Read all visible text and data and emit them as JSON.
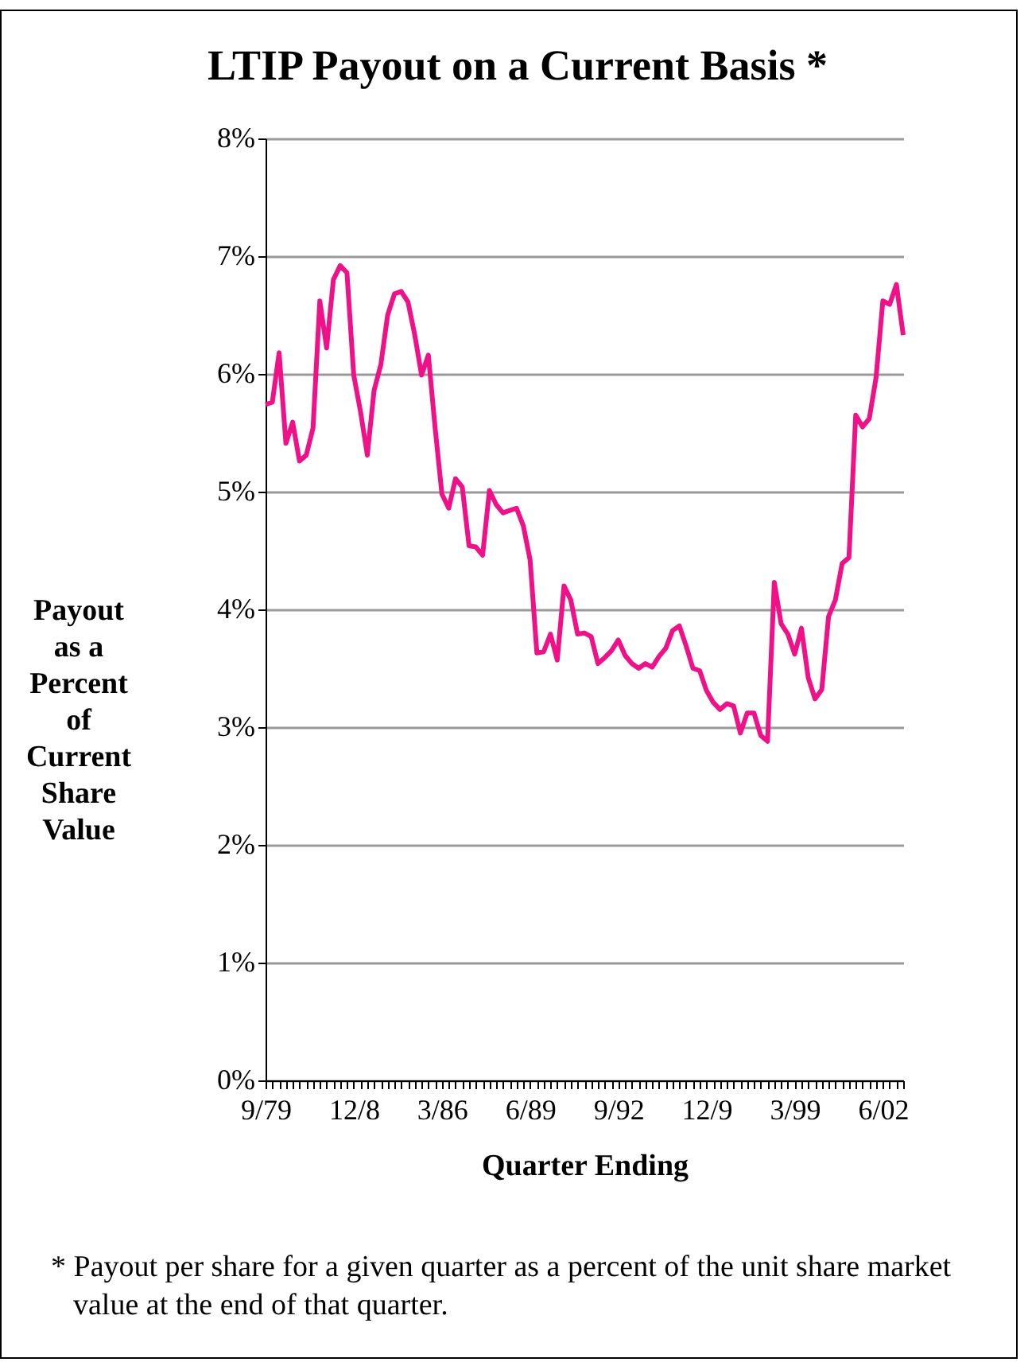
{
  "chart_data": {
    "type": "line",
    "title": "LTIP Payout on a Current Basis *",
    "xlabel": "Quarter Ending",
    "ylabel": "Payout\nas a\nPercent\nof\nCurrent\nShare\nValue",
    "categories": [
      "9/79",
      null,
      null,
      null,
      null,
      null,
      null,
      null,
      null,
      null,
      null,
      null,
      null,
      "12/8",
      null,
      null,
      null,
      null,
      null,
      null,
      null,
      null,
      null,
      null,
      null,
      null,
      "3/86",
      null,
      null,
      null,
      null,
      null,
      null,
      null,
      null,
      null,
      null,
      null,
      null,
      "6/89",
      null,
      null,
      null,
      null,
      null,
      null,
      null,
      null,
      null,
      null,
      null,
      null,
      "9/92",
      null,
      null,
      null,
      null,
      null,
      null,
      null,
      null,
      null,
      null,
      null,
      null,
      "12/9",
      null,
      null,
      null,
      null,
      null,
      null,
      null,
      null,
      null,
      null,
      null,
      null,
      "3/99",
      null,
      null,
      null,
      null,
      null,
      null,
      null,
      null,
      null,
      null,
      null,
      null,
      "6/02",
      null,
      null,
      null
    ],
    "series": [
      {
        "color": "#ee1188",
        "values": [
          5.74,
          5.76,
          6.18,
          5.41,
          5.59,
          5.26,
          5.31,
          5.54,
          6.62,
          6.22,
          6.8,
          6.92,
          6.86,
          5.99,
          5.68,
          5.31,
          5.86,
          6.08,
          6.5,
          6.68,
          6.7,
          6.61,
          6.33,
          5.99,
          6.16,
          5.54,
          4.98,
          4.86,
          5.11,
          5.04,
          4.54,
          4.53,
          4.46,
          5.01,
          4.89,
          4.82,
          4.84,
          4.86,
          4.71,
          4.42,
          3.63,
          3.64,
          3.79,
          3.57,
          4.2,
          4.08,
          3.79,
          3.8,
          3.77,
          3.54,
          3.59,
          3.65,
          3.74,
          3.61,
          3.54,
          3.5,
          3.54,
          3.51,
          3.6,
          3.67,
          3.82,
          3.86,
          3.69,
          3.5,
          3.48,
          3.31,
          3.21,
          3.15,
          3.2,
          3.18,
          2.95,
          3.12,
          3.12,
          2.93,
          2.88,
          4.23,
          3.88,
          3.79,
          3.62,
          3.84,
          3.42,
          3.24,
          3.32,
          3.94,
          4.08,
          4.39,
          4.44,
          5.65,
          5.55,
          5.62,
          5.97,
          6.62,
          6.59,
          6.76,
          6.33
        ]
      }
    ],
    "ylim": [
      0,
      8
    ],
    "yticks": [
      {
        "value": 0,
        "label": "0%"
      },
      {
        "value": 1,
        "label": "1%"
      },
      {
        "value": 2,
        "label": "2%"
      },
      {
        "value": 3,
        "label": "3%"
      },
      {
        "value": 4,
        "label": "4%"
      },
      {
        "value": 5,
        "label": "5%"
      },
      {
        "value": 6,
        "label": "6%"
      },
      {
        "value": 7,
        "label": "7%"
      },
      {
        "value": 8,
        "label": "8%"
      }
    ],
    "grid": "y",
    "marker": "none",
    "line_style": "solid",
    "annotations": [
      "* Payout per share for a given quarter as a percent of the unit share market value at the end of that quarter."
    ]
  }
}
